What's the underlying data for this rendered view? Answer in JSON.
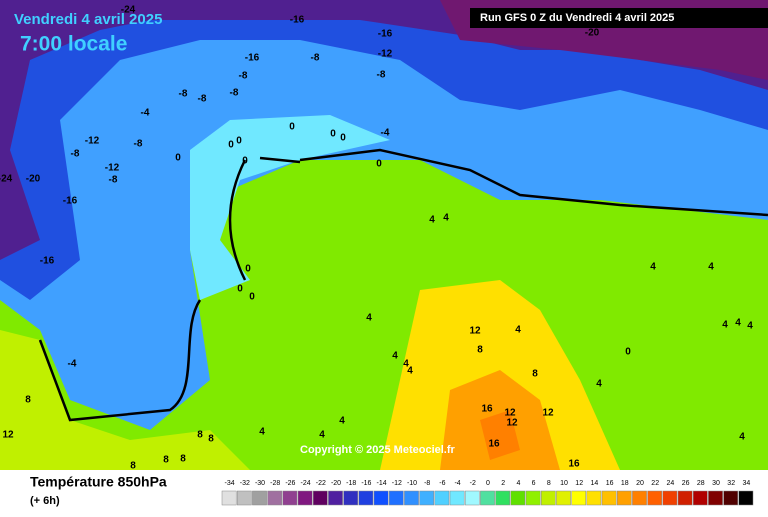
{
  "header": {
    "date": "Vendredi 4 avril 2025",
    "time": "7:00 locale",
    "run": "Run GFS 0 Z du Vendredi 4 avril 2025"
  },
  "map": {
    "copyright": "Copyright © 2025 Meteociel.fr",
    "contour_labels": [
      -24,
      -16,
      -16,
      -20,
      -12,
      -16,
      -8,
      -8,
      -8,
      -8,
      -8,
      -8,
      -4,
      -12,
      -8,
      -8,
      -12,
      -8,
      -24,
      -20,
      -16,
      -16,
      -4,
      0,
      0,
      0,
      0,
      0,
      0,
      0,
      0,
      0,
      0,
      0,
      4,
      4,
      4,
      4,
      4,
      4,
      4,
      4,
      4,
      4,
      4,
      4,
      -4,
      8,
      8,
      8,
      8,
      8,
      8,
      12,
      12,
      12,
      12,
      12,
      16,
      16,
      16,
      8,
      4,
      0,
      4,
      4,
      4,
      4,
      8
    ]
  },
  "legend": {
    "title": "Température 850hPa",
    "subtitle": "(+ 6h)",
    "ticks": [
      -34,
      -32,
      -30,
      -28,
      -26,
      -24,
      -22,
      -20,
      -18,
      -16,
      -14,
      -12,
      -10,
      -8,
      -6,
      -4,
      -2,
      0,
      2,
      4,
      6,
      8,
      10,
      12,
      14,
      16,
      18,
      20,
      22,
      24,
      26,
      28,
      30,
      32,
      34
    ],
    "colors": [
      "#e0e0e0",
      "#c0c0c0",
      "#a0a0a0",
      "#a070a0",
      "#904090",
      "#801880",
      "#600060",
      "#5020a0",
      "#3030c0",
      "#2040e0",
      "#1050ff",
      "#2070ff",
      "#3090ff",
      "#40b0ff",
      "#50d0ff",
      "#70e8ff",
      "#a0f8ff",
      "#50e0a0",
      "#30e060",
      "#60e000",
      "#90f000",
      "#c0f000",
      "#e0f000",
      "#ffff00",
      "#ffe000",
      "#ffc000",
      "#ffa000",
      "#ff8000",
      "#ff6000",
      "#f04000",
      "#d02000",
      "#b00000",
      "#800000",
      "#500000",
      "#000000"
    ]
  }
}
